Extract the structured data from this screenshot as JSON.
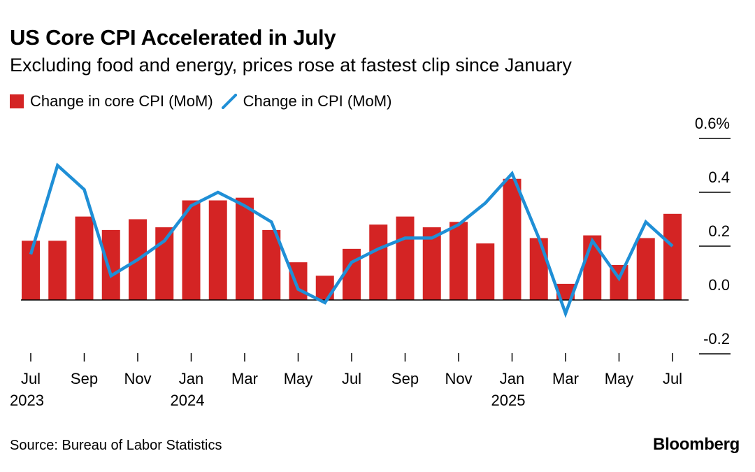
{
  "header": {
    "title": "US Core CPI Accelerated in July",
    "subtitle": "Excluding food and energy, prices rose at fastest clip since January"
  },
  "footer": {
    "source": "Source: Bureau of Labor Statistics",
    "brand": "Bloomberg"
  },
  "colors": {
    "bar": "#d42424",
    "line": "#1f8fd6",
    "axis": "#000000"
  },
  "chart_data": {
    "type": "bar",
    "title": "US Core CPI Accelerated in July",
    "subtitle": "Excluding food and energy, prices rose at fastest clip since January",
    "categories": [
      "Jul 2023",
      "Aug 2023",
      "Sep 2023",
      "Oct 2023",
      "Nov 2023",
      "Dec 2023",
      "Jan 2024",
      "Feb 2024",
      "Mar 2024",
      "Apr 2024",
      "May 2024",
      "Jun 2024",
      "Jul 2024",
      "Aug 2024",
      "Sep 2024",
      "Oct 2024",
      "Nov 2024",
      "Dec 2024",
      "Jan 2025",
      "Feb 2025",
      "Mar 2025",
      "Apr 2025",
      "May 2025",
      "Jun 2025",
      "Jul 2025"
    ],
    "series": [
      {
        "name": "Change in core CPI (MoM)",
        "type": "bar",
        "values": [
          0.22,
          0.22,
          0.31,
          0.26,
          0.3,
          0.27,
          0.37,
          0.37,
          0.38,
          0.26,
          0.14,
          0.09,
          0.19,
          0.28,
          0.31,
          0.27,
          0.29,
          0.21,
          0.45,
          0.23,
          0.06,
          0.24,
          0.13,
          0.23,
          0.32
        ]
      },
      {
        "name": "Change in CPI (MoM)",
        "type": "line",
        "values": [
          0.17,
          0.5,
          0.41,
          0.09,
          0.15,
          0.22,
          0.35,
          0.4,
          0.35,
          0.29,
          0.04,
          -0.01,
          0.14,
          0.19,
          0.23,
          0.23,
          0.28,
          0.36,
          0.47,
          0.23,
          -0.05,
          0.22,
          0.08,
          0.29,
          0.2
        ]
      }
    ],
    "xticks": [
      {
        "index": 0,
        "label": "Jul",
        "year": "2023"
      },
      {
        "index": 2,
        "label": "Sep"
      },
      {
        "index": 4,
        "label": "Nov"
      },
      {
        "index": 6,
        "label": "Jan",
        "year": "2024"
      },
      {
        "index": 8,
        "label": "Mar"
      },
      {
        "index": 10,
        "label": "May"
      },
      {
        "index": 12,
        "label": "Jul"
      },
      {
        "index": 14,
        "label": "Sep"
      },
      {
        "index": 16,
        "label": "Nov"
      },
      {
        "index": 18,
        "label": "Jan",
        "year": "2025"
      },
      {
        "index": 20,
        "label": "Mar"
      },
      {
        "index": 22,
        "label": "May"
      },
      {
        "index": 24,
        "label": "Jul"
      }
    ],
    "yticks": [
      {
        "value": 0.6,
        "label": "0.6%"
      },
      {
        "value": 0.4,
        "label": "0.4"
      },
      {
        "value": 0.2,
        "label": "0.2"
      },
      {
        "value": 0.0,
        "label": "0.0"
      },
      {
        "value": -0.2,
        "label": "-0.2"
      }
    ],
    "ylim": [
      -0.2,
      0.6
    ],
    "xlabel": "",
    "ylabel": "",
    "legend_position": "top-left",
    "grid": false
  }
}
